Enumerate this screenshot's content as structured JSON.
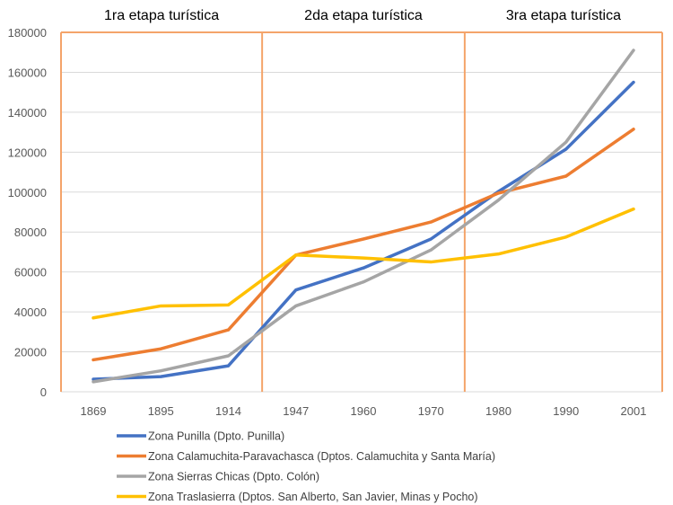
{
  "chart_data": {
    "type": "line",
    "title": "",
    "xlabel": "",
    "ylabel": "",
    "ylim": [
      0,
      180000
    ],
    "yticks": [
      0,
      20000,
      40000,
      60000,
      80000,
      100000,
      120000,
      140000,
      160000,
      180000
    ],
    "grid": true,
    "legend_placement": "bottom",
    "categories": [
      "1869",
      "1895",
      "1914",
      "1947",
      "1960",
      "1970",
      "1980",
      "1990",
      "2001"
    ],
    "stages": [
      {
        "label": "1ra etapa turística",
        "from": "1869",
        "to": "1914"
      },
      {
        "label": "2da etapa turística",
        "from": "1947",
        "to": "1970"
      },
      {
        "label": "3ra etapa turística",
        "from": "1980",
        "to": "2001"
      }
    ],
    "stage_divider_color": "#F4A46A",
    "series": [
      {
        "name": "Zona Punilla (Dpto. Punilla)",
        "color": "#4472C4",
        "values": [
          6300,
          7600,
          13000,
          51000,
          62000,
          76500,
          100300,
          121500,
          155000
        ]
      },
      {
        "name": "Zona Calamuchita-Paravachasca (Dptos. Calamuchita y Santa María)",
        "color": "#ED7D31",
        "values": [
          16000,
          21500,
          31000,
          68500,
          76500,
          85000,
          99500,
          108000,
          131500
        ]
      },
      {
        "name": "Zona Sierras Chicas (Dpto. Colón)",
        "color": "#A5A5A5",
        "values": [
          5000,
          10500,
          18000,
          43000,
          55000,
          71000,
          96000,
          125000,
          171000
        ]
      },
      {
        "name": "Zona Traslasierra (Dptos. San Alberto, San Javier, Minas y Pocho)",
        "color": "#FFC000",
        "values": [
          37000,
          43000,
          43500,
          68500,
          67000,
          65000,
          69000,
          77500,
          91500
        ]
      }
    ]
  }
}
